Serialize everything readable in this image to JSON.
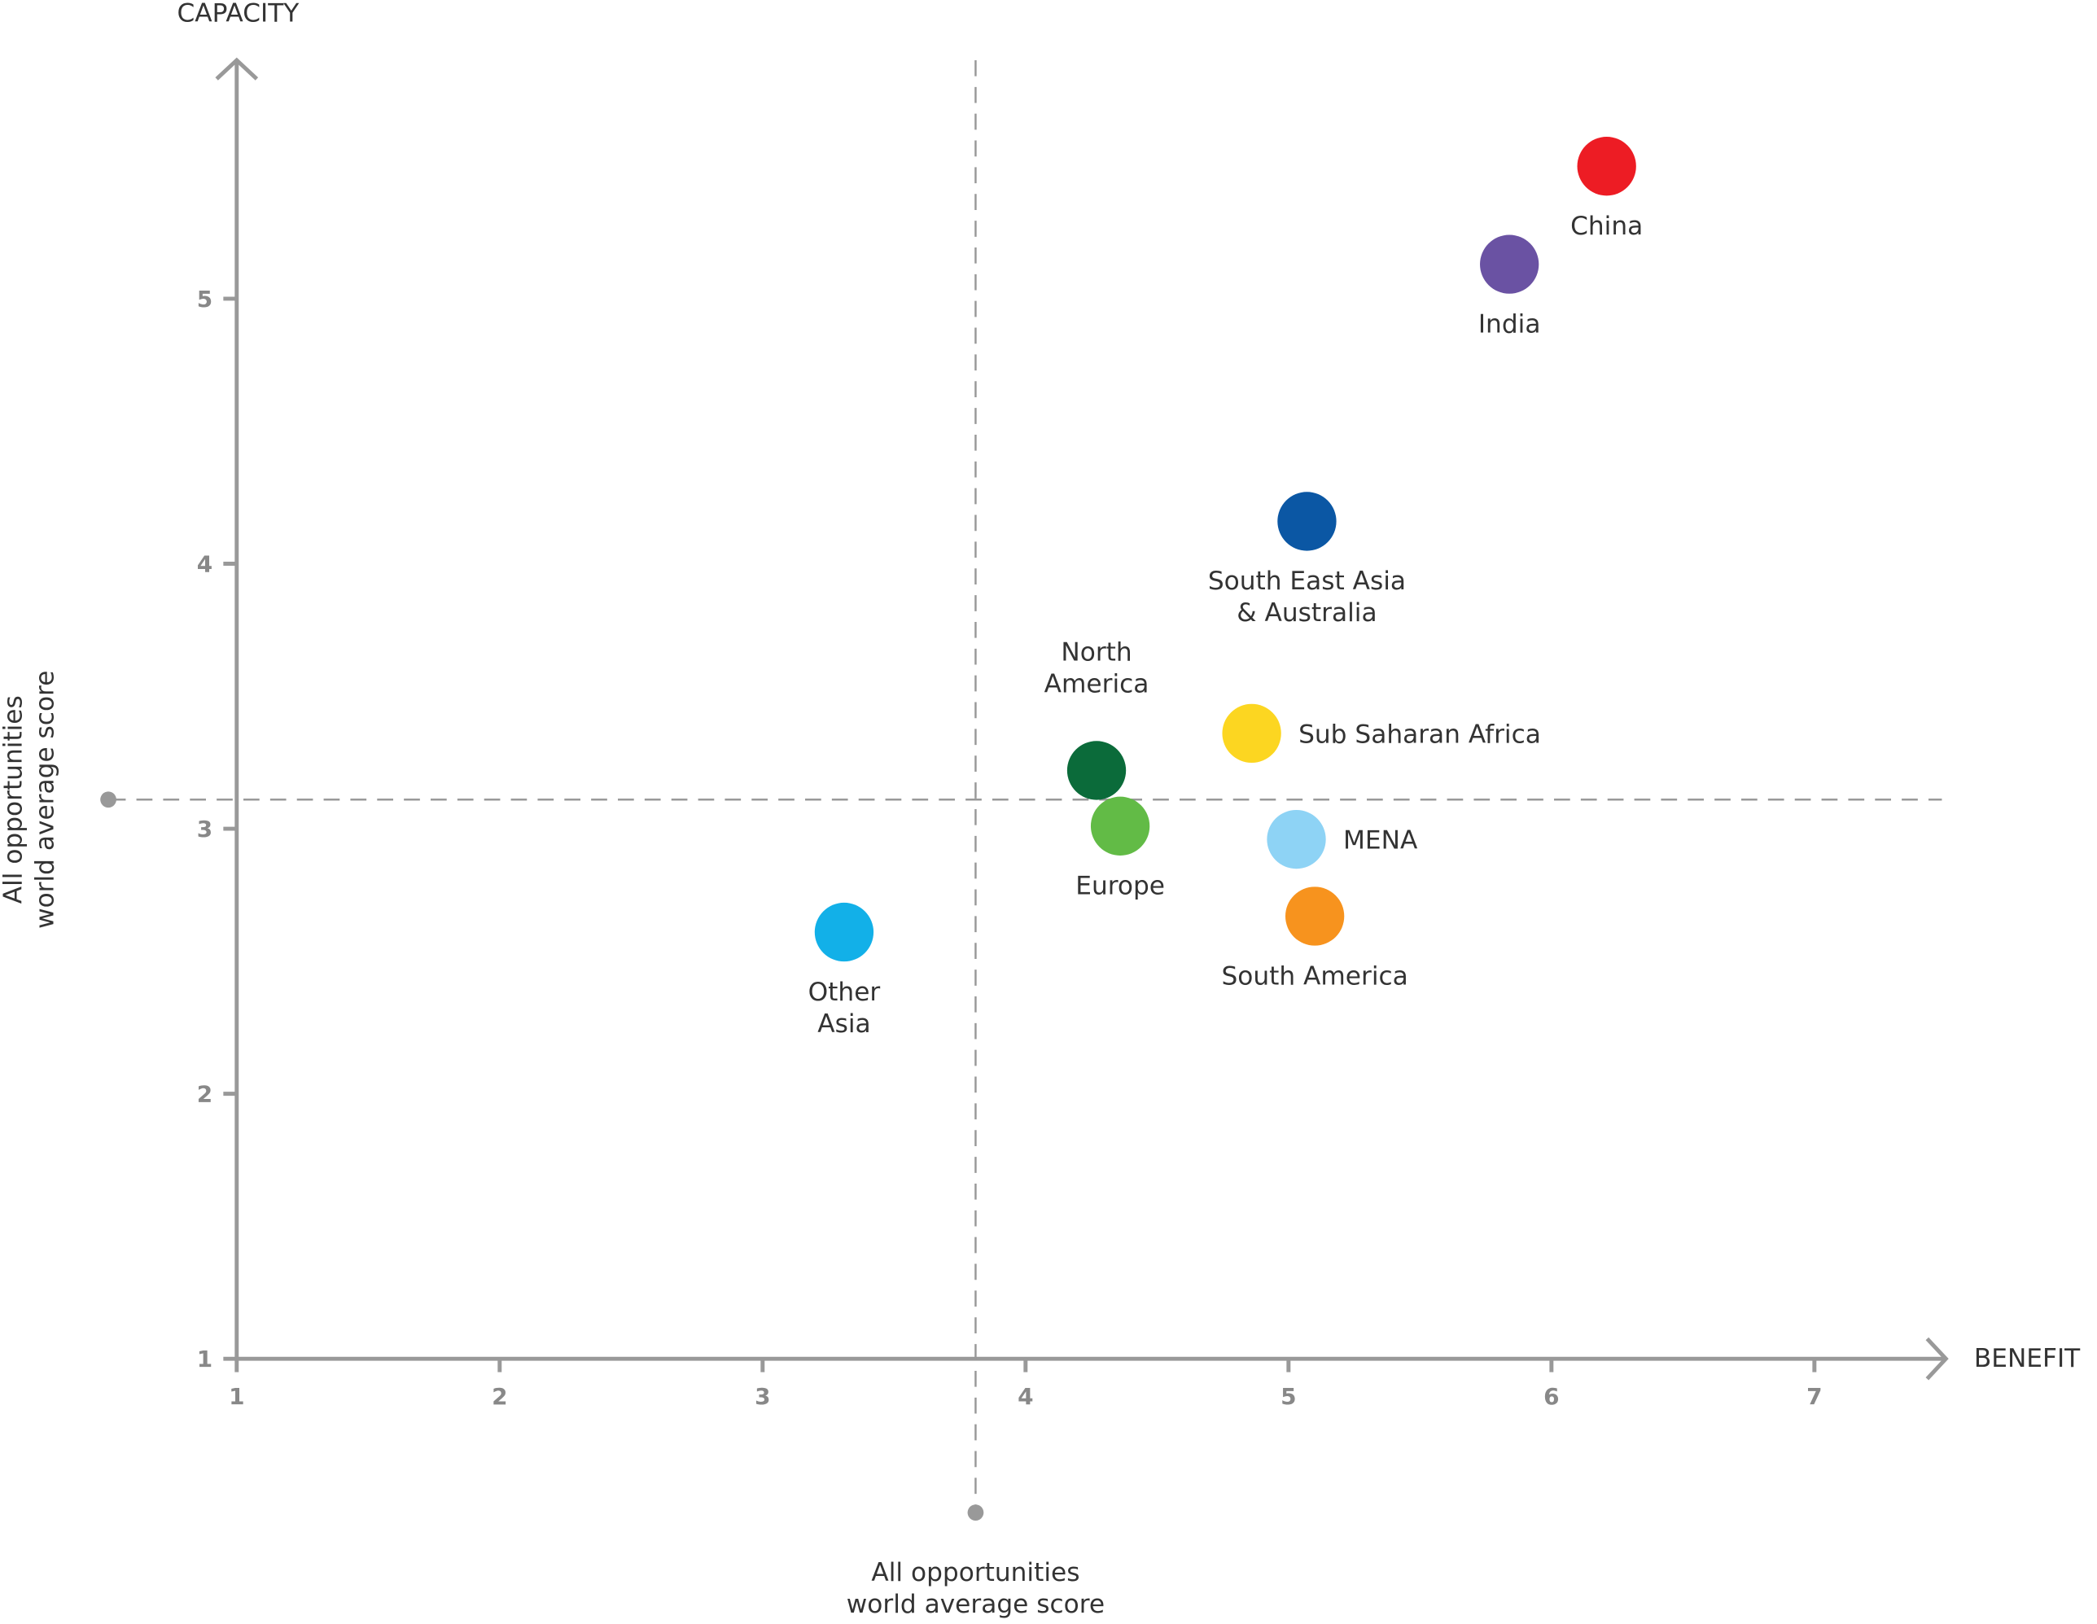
{
  "chart_data": {
    "type": "scatter",
    "x_label": "BENEFIT",
    "y_label": "CAPACITY",
    "xlim": [
      1,
      7.5
    ],
    "ylim": [
      1,
      5.9
    ],
    "xticks": [
      1,
      2,
      3,
      4,
      5,
      6,
      7
    ],
    "yticks": [
      1,
      2,
      3,
      4,
      5
    ],
    "grid": false,
    "reference_x": 3.81,
    "reference_y": 3.11,
    "reference_x_label": "All opportunities\nworld average score",
    "reference_y_label": "All opportunities\nworld average score",
    "points": [
      {
        "name": "China",
        "x": 6.21,
        "y": 5.5,
        "color": "#ed1c24"
      },
      {
        "name": "India",
        "x": 5.84,
        "y": 5.13,
        "color": "#6a52a3"
      },
      {
        "name": "South East Asia\n& Australia",
        "x": 5.07,
        "y": 4.16,
        "color": "#0b57a4"
      },
      {
        "name": "Sub Saharan Africa",
        "x": 4.86,
        "y": 3.36,
        "color": "#fcd621"
      },
      {
        "name": "North\nAmerica",
        "x": 4.27,
        "y": 3.22,
        "color": "#0b6b3a"
      },
      {
        "name": "Europe",
        "x": 4.36,
        "y": 3.01,
        "color": "#62bb46"
      },
      {
        "name": "MENA",
        "x": 5.03,
        "y": 2.96,
        "color": "#8ed3f5"
      },
      {
        "name": "South America",
        "x": 5.1,
        "y": 2.67,
        "color": "#f7931e"
      },
      {
        "name": "Other\nAsia",
        "x": 3.31,
        "y": 2.61,
        "color": "#12b0e8"
      }
    ]
  }
}
